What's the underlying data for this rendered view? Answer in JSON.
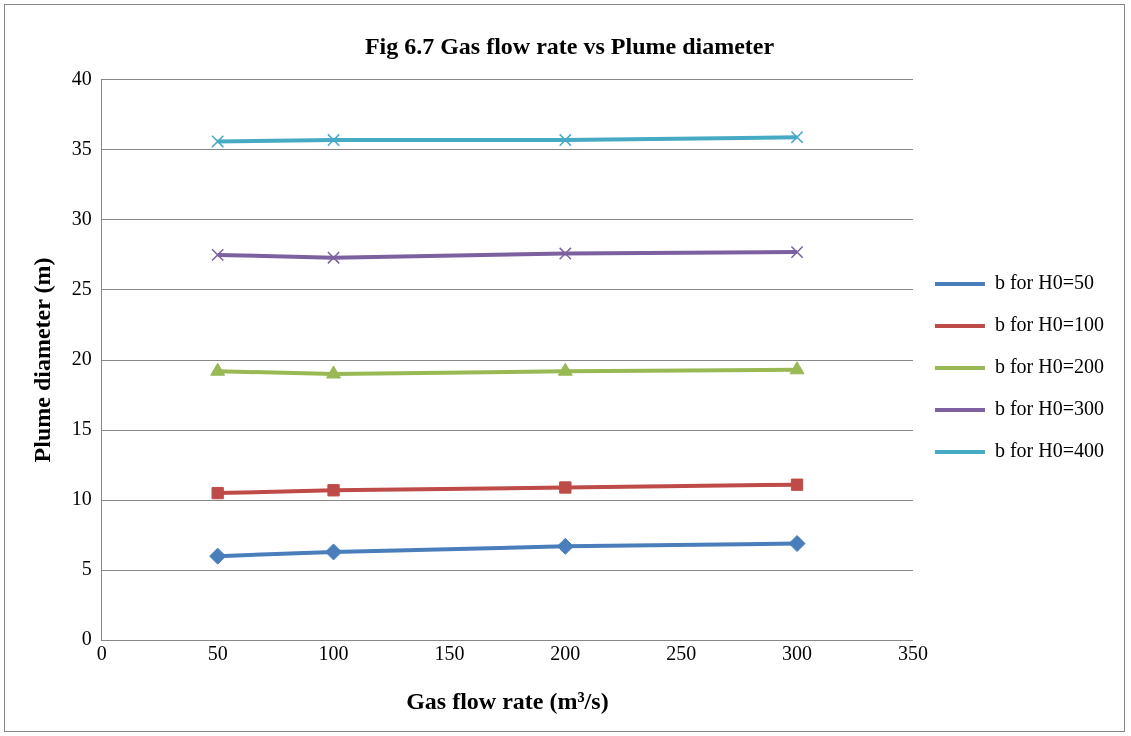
{
  "chart_data": {
    "type": "line",
    "title": "Fig 6.7 Gas flow rate vs Plume diameter",
    "xlabel": "Gas flow rate (m³/s)",
    "ylabel": "Plume diameter (m)",
    "x": [
      50,
      100,
      200,
      300
    ],
    "series": [
      {
        "name": "b for H0=50",
        "color": "#4a7ebb",
        "marker": "diamond",
        "values": [
          6.0,
          6.3,
          6.7,
          6.9
        ]
      },
      {
        "name": "b for H0=100",
        "color": "#be4b48",
        "marker": "square",
        "values": [
          10.5,
          10.7,
          10.9,
          11.1
        ]
      },
      {
        "name": "b for H0=200",
        "color": "#98b954",
        "marker": "triangle",
        "values": [
          19.2,
          19.0,
          19.2,
          19.3
        ]
      },
      {
        "name": "b for H0=300",
        "color": "#7d60a0",
        "marker": "cross",
        "values": [
          27.5,
          27.3,
          27.6,
          27.7
        ]
      },
      {
        "name": "b for H0=400",
        "color": "#46aac5",
        "marker": "cross",
        "values": [
          35.6,
          35.7,
          35.7,
          35.9
        ]
      }
    ],
    "xlim": [
      0,
      350
    ],
    "xticks": [
      0,
      50,
      100,
      150,
      200,
      250,
      300,
      350
    ],
    "ylim": [
      0,
      40
    ],
    "yticks": [
      0,
      5,
      10,
      15,
      20,
      25,
      30,
      35,
      40
    ],
    "grid": "y",
    "legend": "right",
    "line_style": "solid"
  }
}
